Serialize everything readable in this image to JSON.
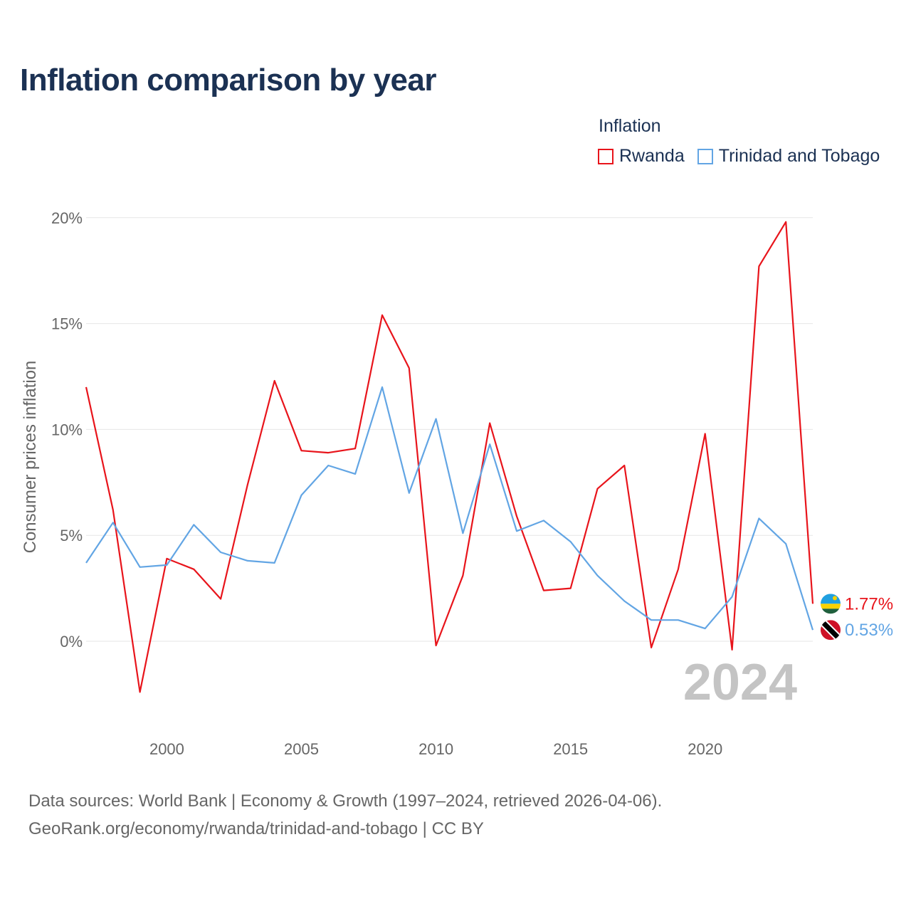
{
  "title": "Inflation comparison by year",
  "legend": {
    "title": "Inflation",
    "items": [
      {
        "label": "Rwanda",
        "color": "#e8141b"
      },
      {
        "label": "Trinidad and Tobago",
        "color": "#62a5e4"
      }
    ]
  },
  "footer": {
    "line1": "Data sources: World Bank | Economy & Growth (1997–2024, retrieved 2026-04-06).",
    "line2": "GeoRank.org/economy/rwanda/trinidad-and-tobago | CC BY"
  },
  "chart_data": {
    "type": "line",
    "title": "Inflation comparison by year",
    "xlabel": "",
    "ylabel": "Consumer prices inflation",
    "xlim": [
      1997,
      2024
    ],
    "ylim": [
      -4,
      20
    ],
    "y_ticks": [
      0,
      5,
      10,
      15,
      20
    ],
    "y_tick_labels": [
      "0%",
      "5%",
      "10%",
      "15%",
      "20%"
    ],
    "x_ticks": [
      2000,
      2005,
      2010,
      2015,
      2020
    ],
    "x_tick_labels": [
      "2000",
      "2005",
      "2010",
      "2015",
      "2020"
    ],
    "year_label": "2024",
    "x": [
      1997,
      1998,
      1999,
      2000,
      2001,
      2002,
      2003,
      2004,
      2005,
      2006,
      2007,
      2008,
      2009,
      2010,
      2011,
      2012,
      2013,
      2014,
      2015,
      2016,
      2017,
      2018,
      2019,
      2020,
      2021,
      2022,
      2023,
      2024
    ],
    "series": [
      {
        "name": "Rwanda",
        "color": "#e8141b",
        "values": [
          12.0,
          6.2,
          -2.4,
          3.9,
          3.4,
          2.0,
          7.4,
          12.3,
          9.0,
          8.9,
          9.1,
          15.4,
          12.9,
          -0.2,
          3.1,
          10.3,
          5.9,
          2.4,
          2.5,
          7.2,
          8.3,
          -0.3,
          3.4,
          9.8,
          -0.4,
          17.7,
          19.8,
          1.77
        ],
        "end_label": "1.77%"
      },
      {
        "name": "Trinidad and Tobago",
        "color": "#62a5e4",
        "values": [
          3.7,
          5.6,
          3.5,
          3.6,
          5.5,
          4.2,
          3.8,
          3.7,
          6.9,
          8.3,
          7.9,
          12.0,
          7.0,
          10.5,
          5.1,
          9.3,
          5.2,
          5.7,
          4.7,
          3.1,
          1.9,
          1.0,
          1.0,
          0.6,
          2.1,
          5.8,
          4.6,
          0.53
        ],
        "end_label": "0.53%"
      }
    ],
    "grid": true,
    "legend_position": "top-right"
  }
}
